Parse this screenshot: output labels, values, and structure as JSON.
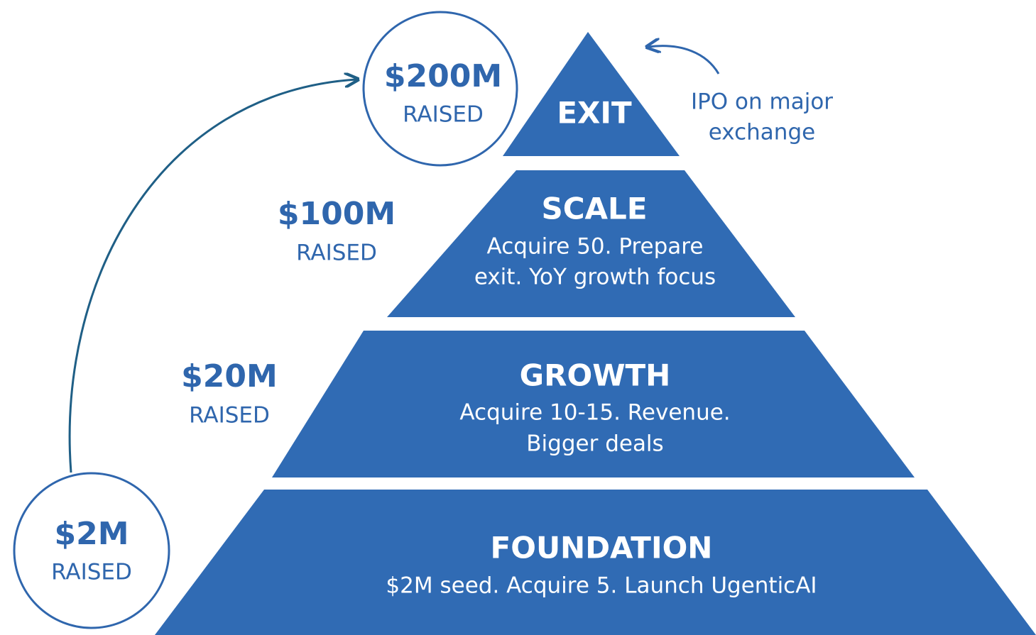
{
  "tiers": [
    {
      "title": "EXIT"
    },
    {
      "title": "SCALE",
      "lines": [
        "Acquire 50. Prepare",
        "exit. YoY growth focus"
      ]
    },
    {
      "title": "GROWTH",
      "lines": [
        "Acquire 10-15. Revenue.",
        "Bigger deals"
      ]
    },
    {
      "title": "FOUNDATION",
      "lines": [
        "$2M seed. Acquire 5. Launch UgenticAI"
      ]
    }
  ],
  "raised": [
    {
      "amount": "$200M",
      "label": "RAISED"
    },
    {
      "amount": "$100M",
      "label": "RAISED"
    },
    {
      "amount": "$20M",
      "label": "RAISED"
    },
    {
      "amount": "$2M",
      "label": "RAISED"
    }
  ],
  "annotation": [
    "IPO on major",
    "exchange"
  ]
}
